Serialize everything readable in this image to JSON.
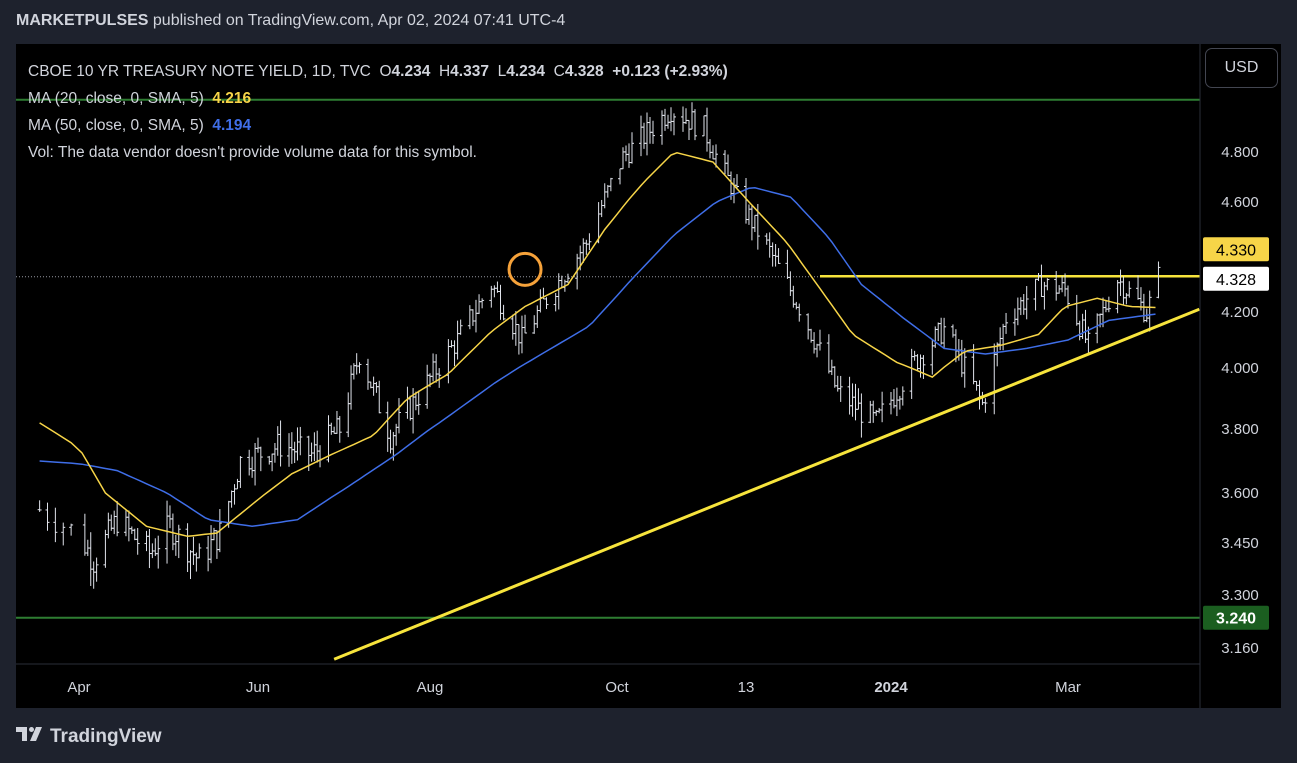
{
  "header": {
    "publisher": "MARKETPULSES",
    "rest": " published on TradingView.com, Apr 02, 2024 07:41 UTC-4"
  },
  "legend": {
    "symbol": "CBOE 10 YR TREASURY NOTE YIELD, 1D, TVC",
    "ohlc": [
      {
        "k": "O",
        "v": "4.234"
      },
      {
        "k": "H",
        "v": "4.337"
      },
      {
        "k": "L",
        "v": "4.234"
      },
      {
        "k": "C",
        "v": "4.328"
      }
    ],
    "change": "+0.123 (+2.93%)",
    "ma20_label": "MA (20, close, 0, SMA, 5)",
    "ma20_value": "4.216",
    "ma50_label": "MA (50, close, 0, SMA, 5)",
    "ma50_value": "4.194",
    "vol_note": "Vol: The data vendor doesn't provide volume data for this symbol."
  },
  "currency_button": "USD",
  "footer_brand": "TradingView",
  "colors": {
    "background": "#000000",
    "bars": "#e0e3eb",
    "ma20": "#f7d548",
    "ma50": "#3f6ee8",
    "trendline": "#f7e43c",
    "green_line": "#2e7d32",
    "axis_text": "#d1d4dc"
  },
  "chart_data": {
    "type": "ohlc",
    "price_axis": {
      "ticks": [
        "4.800",
        "4.600",
        "4.200",
        "4.000",
        "3.800",
        "3.600",
        "3.450",
        "3.300",
        "3.160"
      ],
      "ylim": [
        3.16,
        4.98
      ]
    },
    "time_axis": {
      "labels": [
        "Apr",
        "Jun",
        "Aug",
        "Oct",
        "13",
        "2024",
        "Mar"
      ],
      "bold_labels": [
        "2024"
      ]
    },
    "price_labels": [
      {
        "text": "4.330",
        "value": 4.33,
        "style": "yellow"
      },
      {
        "text": "4.328",
        "value": 4.328,
        "style": "white"
      },
      {
        "text": "3.240",
        "value": 3.24,
        "style": "green"
      }
    ],
    "horizontal_levels": [
      {
        "value": 4.33,
        "from": "Dec-2023",
        "style": "yellow"
      },
      {
        "value": 4.328,
        "style": "dotted-current"
      },
      {
        "value": 3.24,
        "style": "green"
      },
      {
        "value": 4.98,
        "style": "green"
      }
    ],
    "trendline": {
      "from": {
        "x": "2023-06-28",
        "y": 3.13
      },
      "to": {
        "x": "2024-04-15",
        "y": 4.21
      }
    },
    "highlight_circle": {
      "x": "2023-09-01",
      "y": 4.355
    },
    "series": [
      {
        "name": "MA (20, close, 0, SMA, 5)",
        "color": "#f7d548"
      },
      {
        "name": "MA (50, close, 0, SMA, 5)",
        "color": "#3f6ee8"
      }
    ],
    "close_path": [
      [
        "2023-03-27",
        3.55
      ],
      [
        "2023-04-06",
        3.4
      ],
      [
        "2023-04-14",
        3.52
      ],
      [
        "2023-04-25",
        3.42
      ],
      [
        "2023-05-02",
        3.5
      ],
      [
        "2023-05-12",
        3.4
      ],
      [
        "2023-05-19",
        3.48
      ],
      [
        "2023-05-26",
        3.7
      ],
      [
        "2023-06-09",
        3.75
      ],
      [
        "2023-06-20",
        3.72
      ],
      [
        "2023-06-30",
        3.8
      ],
      [
        "2023-07-07",
        4.05
      ],
      [
        "2023-07-18",
        3.78
      ],
      [
        "2023-07-31",
        3.95
      ],
      [
        "2023-08-10",
        4.1
      ],
      [
        "2023-08-21",
        4.3
      ],
      [
        "2023-08-31",
        4.1
      ],
      [
        "2023-09-08",
        4.25
      ],
      [
        "2023-09-21",
        4.45
      ],
      [
        "2023-10-03",
        4.78
      ],
      [
        "2023-10-19",
        4.95
      ],
      [
        "2023-10-30",
        4.88
      ],
      [
        "2023-11-10",
        4.62
      ],
      [
        "2023-11-21",
        4.42
      ],
      [
        "2023-12-01",
        4.22
      ],
      [
        "2023-12-14",
        3.92
      ],
      [
        "2023-12-27",
        3.82
      ],
      [
        "2024-01-09",
        4.02
      ],
      [
        "2024-01-19",
        4.14
      ],
      [
        "2024-02-01",
        3.88
      ],
      [
        "2024-02-09",
        4.18
      ],
      [
        "2024-02-21",
        4.3
      ],
      [
        "2024-02-29",
        4.28
      ],
      [
        "2024-03-08",
        4.08
      ],
      [
        "2024-03-18",
        4.32
      ],
      [
        "2024-03-28",
        4.2
      ],
      [
        "2024-04-01",
        4.328
      ]
    ],
    "ma20_path": [
      [
        "2023-03-27",
        3.82
      ],
      [
        "2023-04-10",
        3.6
      ],
      [
        "2023-04-24",
        3.5
      ],
      [
        "2023-05-08",
        3.47
      ],
      [
        "2023-05-18",
        3.48
      ],
      [
        "2023-06-01",
        3.58
      ],
      [
        "2023-06-13",
        3.66
      ],
      [
        "2023-06-27",
        3.72
      ],
      [
        "2023-07-12",
        3.78
      ],
      [
        "2023-07-24",
        3.9
      ],
      [
        "2023-08-07",
        3.98
      ],
      [
        "2023-08-21",
        4.13
      ],
      [
        "2023-09-01",
        4.22
      ],
      [
        "2023-09-15",
        4.3
      ],
      [
        "2023-09-27",
        4.5
      ],
      [
        "2023-10-10",
        4.68
      ],
      [
        "2023-10-20",
        4.8
      ],
      [
        "2023-11-02",
        4.76
      ],
      [
        "2023-11-14",
        4.6
      ],
      [
        "2023-11-27",
        4.45
      ],
      [
        "2023-12-07",
        4.3
      ],
      [
        "2023-12-19",
        4.12
      ],
      [
        "2024-01-03",
        4.02
      ],
      [
        "2024-01-15",
        3.97
      ],
      [
        "2024-01-26",
        4.06
      ],
      [
        "2024-02-07",
        4.08
      ],
      [
        "2024-02-20",
        4.12
      ],
      [
        "2024-02-29",
        4.22
      ],
      [
        "2024-03-11",
        4.25
      ],
      [
        "2024-03-22",
        4.22
      ],
      [
        "2024-04-01",
        4.216
      ]
    ],
    "ma50_path": [
      [
        "2023-03-27",
        3.7
      ],
      [
        "2023-04-14",
        3.67
      ],
      [
        "2023-05-01",
        3.6
      ],
      [
        "2023-05-15",
        3.52
      ],
      [
        "2023-05-30",
        3.5
      ],
      [
        "2023-06-15",
        3.52
      ],
      [
        "2023-07-03",
        3.62
      ],
      [
        "2023-07-20",
        3.72
      ],
      [
        "2023-08-04",
        3.82
      ],
      [
        "2023-08-22",
        3.95
      ],
      [
        "2023-09-08",
        4.06
      ],
      [
        "2023-09-22",
        4.15
      ],
      [
        "2023-10-06",
        4.32
      ],
      [
        "2023-10-20",
        4.48
      ],
      [
        "2023-11-03",
        4.6
      ],
      [
        "2023-11-15",
        4.66
      ],
      [
        "2023-11-28",
        4.62
      ],
      [
        "2023-12-11",
        4.47
      ],
      [
        "2023-12-22",
        4.3
      ],
      [
        "2024-01-05",
        4.18
      ],
      [
        "2024-01-19",
        4.07
      ],
      [
        "2024-02-02",
        4.05
      ],
      [
        "2024-02-16",
        4.07
      ],
      [
        "2024-03-01",
        4.1
      ],
      [
        "2024-03-15",
        4.17
      ],
      [
        "2024-04-01",
        4.194
      ]
    ]
  }
}
